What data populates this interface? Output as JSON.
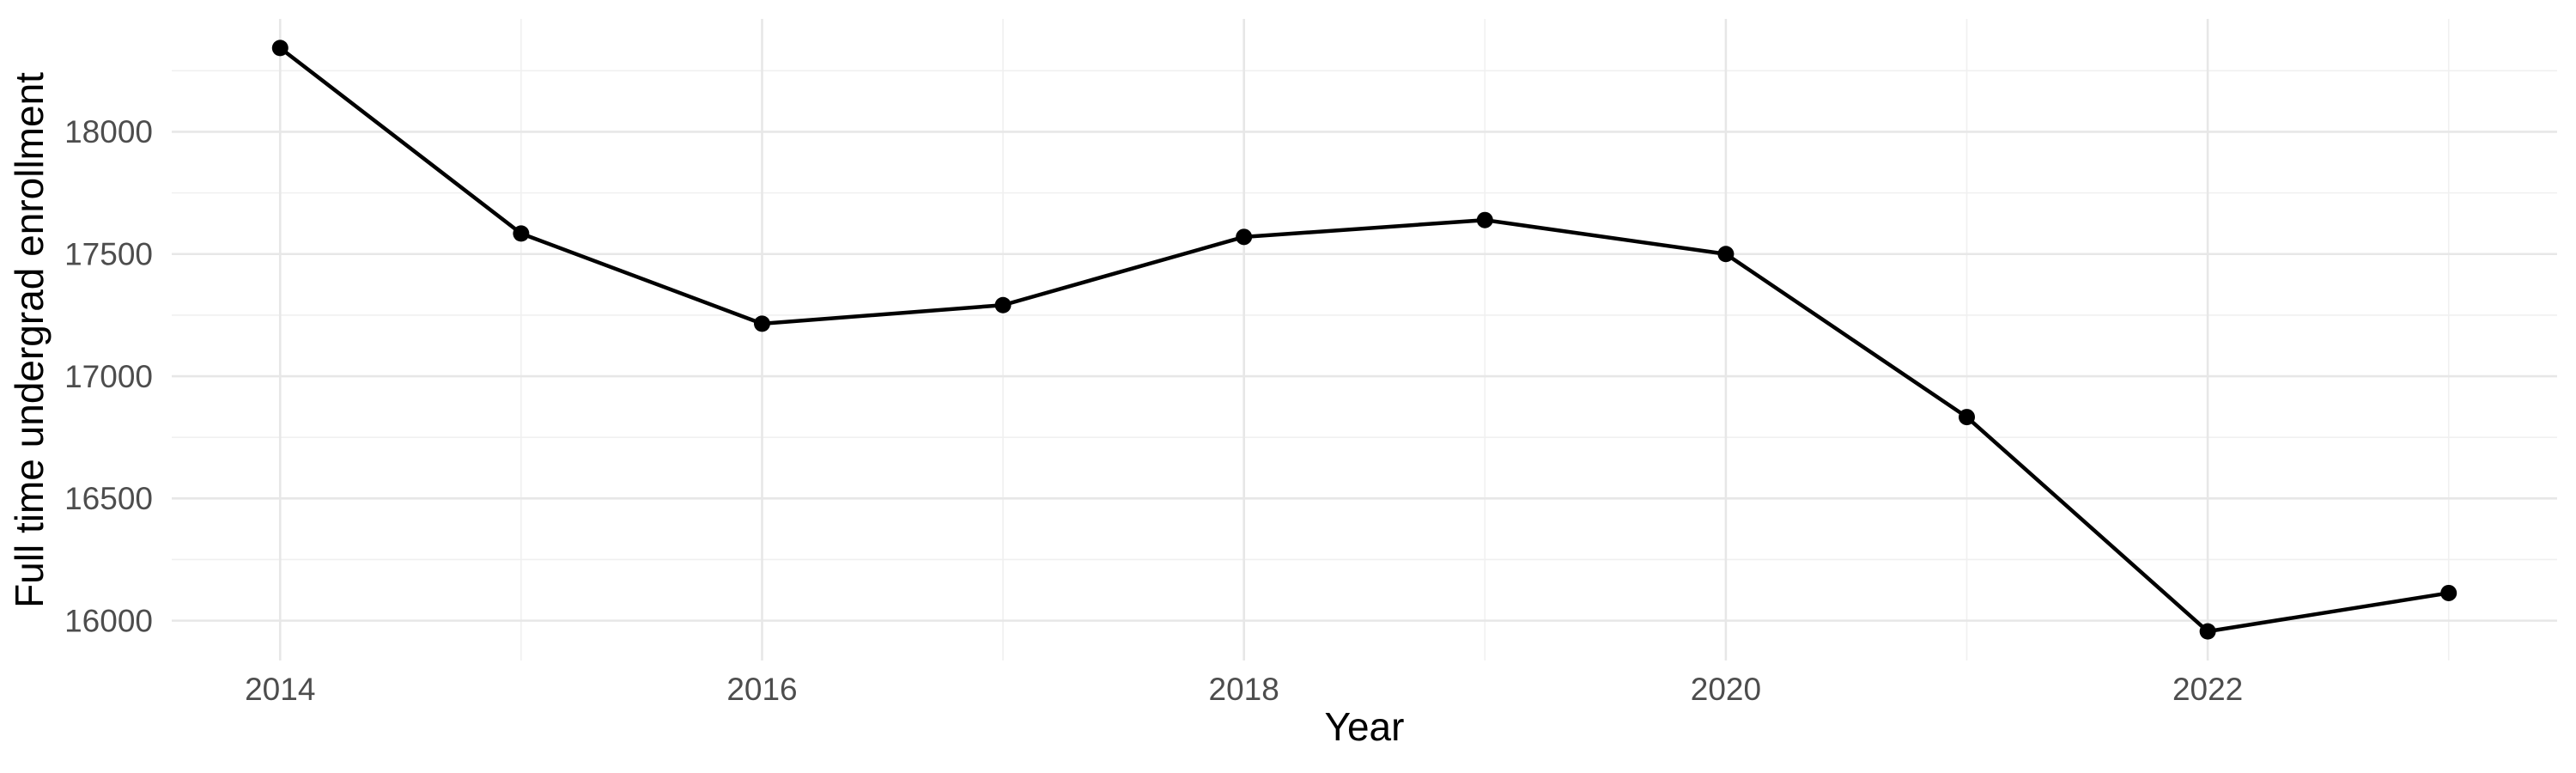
{
  "chart_data": {
    "type": "line",
    "title": "",
    "xlabel": "Year",
    "ylabel": "Full time undergrad enrollment",
    "x": [
      2014,
      2015,
      2016,
      2017,
      2018,
      2019,
      2020,
      2021,
      2022,
      2023
    ],
    "values": [
      18343,
      17584,
      17215,
      17291,
      17570,
      17639,
      17500,
      16833,
      15956,
      16113
    ],
    "series": [
      {
        "name": "Full time undergrad enrollment",
        "values": [
          18343,
          17584,
          17215,
          17291,
          17570,
          17639,
          17500,
          16833,
          15956,
          16113
        ]
      }
    ],
    "x_major_breaks": [
      2014,
      2016,
      2018,
      2020,
      2022
    ],
    "x_major_tick_labels": [
      "2014",
      "2016",
      "2018",
      "2020",
      "2022"
    ],
    "x_minor_breaks": [
      2015,
      2017,
      2019,
      2021,
      2023
    ],
    "y_major_breaks": [
      16000,
      16500,
      17000,
      17500,
      18000
    ],
    "y_major_tick_labels": [
      "16000",
      "16500",
      "17000",
      "17500",
      "18000"
    ],
    "y_minor_breaks": [
      16250,
      16750,
      17250,
      17750,
      18250
    ],
    "xlim": [
      2013.55,
      2023.45
    ],
    "ylim": [
      15837,
      18462
    ],
    "expand_mult": 0.05,
    "grid": "on",
    "legend_position": "none",
    "marker": "filled-circle",
    "colors": {
      "line": "#000000",
      "point": "#000000",
      "grid_major": "#e7e7e7",
      "grid_minor": "#f0f0f0",
      "axis_text": "#4d4d4d",
      "axis_title": "#000000",
      "background": "#ffffff"
    }
  }
}
